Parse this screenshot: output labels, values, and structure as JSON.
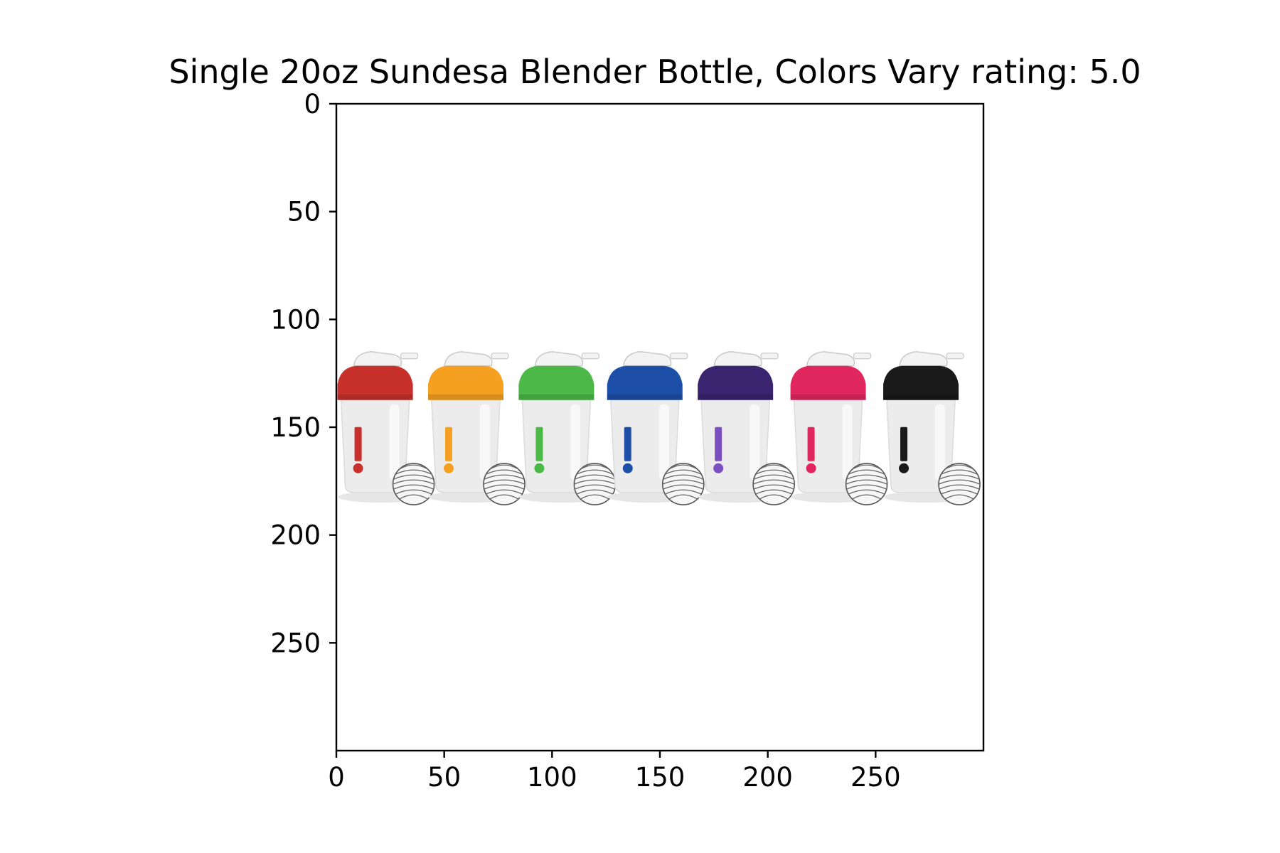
{
  "figure": {
    "background": "#ffffff"
  },
  "chart_data": {
    "type": "image",
    "title": "Single 20oz Sundesa Blender Bottle, Colors Vary rating: 5.0",
    "xlabel": "",
    "ylabel": "",
    "xlim": [
      0,
      300
    ],
    "ylim": [
      300,
      0
    ],
    "y_inverted": true,
    "grid": false,
    "x_ticks": [
      0,
      50,
      100,
      150,
      200,
      250
    ],
    "x_tick_labels": [
      "0",
      "50",
      "100",
      "150",
      "200",
      "250"
    ],
    "y_ticks": [
      0,
      50,
      100,
      150,
      200,
      250
    ],
    "y_tick_labels": [
      "0",
      "50",
      "100",
      "150",
      "200",
      "250"
    ],
    "image": {
      "description_items": "shaker bottles with wire whisk balls",
      "bottles": [
        {
          "cap_color": "#c8302b",
          "logo_color": "#c8302b",
          "x_center": 18
        },
        {
          "cap_color": "#f5a020",
          "logo_color": "#f5a020",
          "x_center": 60
        },
        {
          "cap_color": "#4cb848",
          "logo_color": "#4cb848",
          "x_center": 102
        },
        {
          "cap_color": "#1d4fa8",
          "logo_color": "#1d4fa8",
          "x_center": 143
        },
        {
          "cap_color": "#3a2470",
          "logo_color": "#7a4fc0",
          "x_center": 185
        },
        {
          "cap_color": "#e0285f",
          "logo_color": "#e0285f",
          "x_center": 228
        },
        {
          "cap_color": "#1a1a1a",
          "logo_color": "#1a1a1a",
          "x_center": 271
        }
      ],
      "row_top": 113,
      "row_bottom": 183
    }
  }
}
